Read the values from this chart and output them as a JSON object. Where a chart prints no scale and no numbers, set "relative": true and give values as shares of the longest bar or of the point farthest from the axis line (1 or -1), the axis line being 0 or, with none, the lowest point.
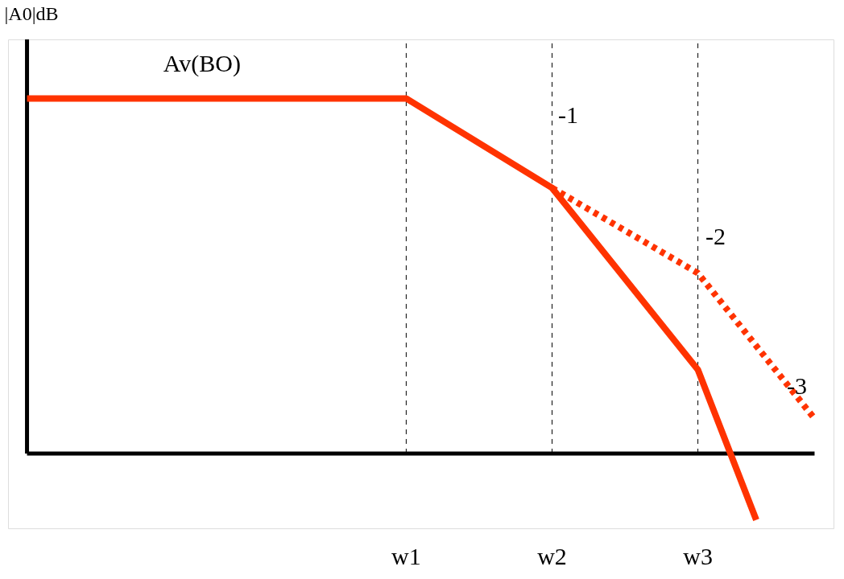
{
  "chart_data": {
    "type": "line",
    "relative": true,
    "ylabel": "|A0|dB",
    "categories": [
      null,
      null,
      null,
      null,
      null,
      null,
      null,
      null,
      null,
      null,
      null,
      null,
      null,
      "w1",
      null,
      null,
      null,
      null,
      "w2",
      null,
      null,
      null,
      null,
      "w3",
      null,
      null,
      null,
      null
    ],
    "series": [
      {
        "name": "Av(BO)",
        "color": "#ff3300",
        "line_style": "solid",
        "values": [
          1,
          null,
          null,
          null,
          null,
          null,
          null,
          null,
          null,
          null,
          null,
          null,
          null,
          1,
          null,
          null,
          null,
          null,
          0.748,
          null,
          null,
          null,
          null,
          0.236,
          null,
          -0.187,
          null,
          null
        ]
      },
      {
        "color": "#ff3300",
        "line_style": "dotted",
        "values": [
          null,
          null,
          null,
          null,
          null,
          null,
          null,
          null,
          null,
          null,
          null,
          null,
          null,
          null,
          null,
          null,
          null,
          null,
          0.748,
          null,
          null,
          null,
          null,
          0.508,
          null,
          null,
          null,
          0.098
        ]
      }
    ],
    "ref_lines": [
      {
        "axis": "x",
        "value": "w1",
        "color": "#000000",
        "line_style": "dotted"
      },
      {
        "axis": "x",
        "value": "w2",
        "color": "#000000",
        "line_style": "dotted"
      },
      {
        "axis": "x",
        "value": "w3",
        "color": "#000000",
        "line_style": "dotted"
      }
    ],
    "annotations": [
      "-1",
      "-2",
      "-3"
    ],
    "grid": false,
    "marker": "none"
  }
}
